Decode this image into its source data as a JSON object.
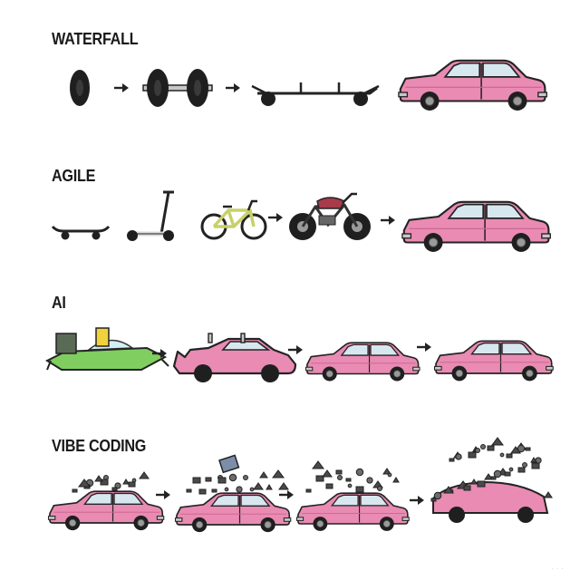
{
  "rows": [
    {
      "title": "WATERFALL"
    },
    {
      "title": "AGILE"
    },
    {
      "title": "AI"
    },
    {
      "title": "VIBE CODING"
    }
  ],
  "colors": {
    "car_body": "#e98bb3",
    "car_shadow": "#c9648f",
    "window": "#d7e7ef",
    "outline": "#232323",
    "tire": "#1f1f1f",
    "hub": "#9a9a9a",
    "metal": "#c7c7c7",
    "bike_frame": "#c8d06a",
    "alien_car": "#7fce5f",
    "scooter": "#d9d9d9",
    "debris": "#4a4a4a"
  }
}
